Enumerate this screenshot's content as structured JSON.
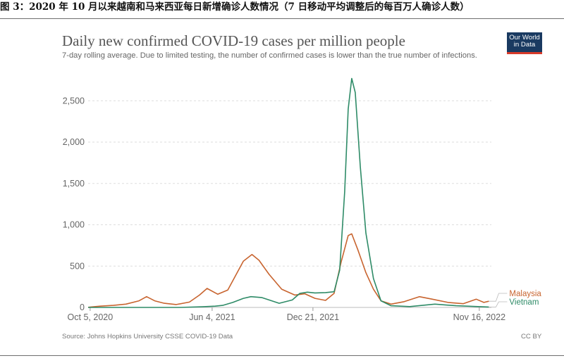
{
  "caption": "图 3：2020 年 10 月以来越南和马来西亚每日新增确诊人数情况（7 日移动平均调整后的每百万人确诊人数）",
  "logo": {
    "line1": "Our World",
    "line2": "in Data"
  },
  "source": "Source: Johns Hopkins University CSSE COVID-19 Data",
  "license": "CC BY",
  "colors": {
    "malaysia": "#c8642f",
    "vietnam": "#2e8b67",
    "grid": "#dddddd",
    "axis": "#666666"
  },
  "chart_data": {
    "type": "line",
    "title": "Daily new confirmed COVID-19 cases per million people",
    "subtitle": "7-day rolling average. Due to limited testing, the number of confirmed cases is lower than the true number of infections.",
    "xlabel": "",
    "ylabel": "",
    "x_range": [
      "2020-10-01",
      "2022-12-10"
    ],
    "ylim": [
      0,
      2800
    ],
    "y_ticks": [
      0,
      500,
      1000,
      1500,
      2000,
      2500
    ],
    "y_tick_labels": [
      "0",
      "500",
      "1,000",
      "1,500",
      "2,000",
      "2,500"
    ],
    "x_ticks": [
      "2020-10-05",
      "2021-06-04",
      "2021-12-21",
      "2022-11-16"
    ],
    "x_tick_labels": [
      "Oct 5, 2020",
      "Jun 4, 2021",
      "Dec 21, 2021",
      "Nov 16, 2022"
    ],
    "grid": true,
    "legend": "right",
    "series": [
      {
        "name": "Malaysia",
        "points": [
          [
            "2020-10-01",
            2
          ],
          [
            "2020-10-25",
            15
          ],
          [
            "2020-11-20",
            25
          ],
          [
            "2020-12-15",
            40
          ],
          [
            "2021-01-10",
            80
          ],
          [
            "2021-01-25",
            130
          ],
          [
            "2021-02-10",
            80
          ],
          [
            "2021-03-01",
            50
          ],
          [
            "2021-03-25",
            35
          ],
          [
            "2021-04-20",
            65
          ],
          [
            "2021-05-10",
            150
          ],
          [
            "2021-05-25",
            230
          ],
          [
            "2021-06-15",
            160
          ],
          [
            "2021-07-05",
            210
          ],
          [
            "2021-07-20",
            380
          ],
          [
            "2021-08-05",
            560
          ],
          [
            "2021-08-22",
            640
          ],
          [
            "2021-09-05",
            570
          ],
          [
            "2021-09-25",
            400
          ],
          [
            "2021-10-20",
            220
          ],
          [
            "2021-11-15",
            150
          ],
          [
            "2021-12-05",
            165
          ],
          [
            "2021-12-25",
            110
          ],
          [
            "2022-01-15",
            85
          ],
          [
            "2022-02-01",
            170
          ],
          [
            "2022-02-15",
            550
          ],
          [
            "2022-03-01",
            870
          ],
          [
            "2022-03-08",
            890
          ],
          [
            "2022-03-20",
            700
          ],
          [
            "2022-04-05",
            420
          ],
          [
            "2022-04-20",
            220
          ],
          [
            "2022-05-05",
            80
          ],
          [
            "2022-05-25",
            40
          ],
          [
            "2022-06-20",
            70
          ],
          [
            "2022-07-20",
            130
          ],
          [
            "2022-08-15",
            100
          ],
          [
            "2022-09-15",
            60
          ],
          [
            "2022-10-15",
            45
          ],
          [
            "2022-11-10",
            100
          ],
          [
            "2022-11-25",
            60
          ],
          [
            "2022-12-05",
            75
          ]
        ]
      },
      {
        "name": "Vietnam",
        "points": [
          [
            "2020-10-01",
            0
          ],
          [
            "2021-04-01",
            0
          ],
          [
            "2021-05-15",
            8
          ],
          [
            "2021-06-10",
            15
          ],
          [
            "2021-06-25",
            25
          ],
          [
            "2021-07-15",
            60
          ],
          [
            "2021-08-05",
            110
          ],
          [
            "2021-08-20",
            130
          ],
          [
            "2021-09-10",
            120
          ],
          [
            "2021-09-25",
            90
          ],
          [
            "2021-10-15",
            50
          ],
          [
            "2021-11-10",
            90
          ],
          [
            "2021-11-25",
            170
          ],
          [
            "2021-12-10",
            185
          ],
          [
            "2021-12-25",
            175
          ],
          [
            "2022-01-15",
            180
          ],
          [
            "2022-02-01",
            190
          ],
          [
            "2022-02-12",
            450
          ],
          [
            "2022-02-22",
            1400
          ],
          [
            "2022-03-01",
            2400
          ],
          [
            "2022-03-08",
            2770
          ],
          [
            "2022-03-15",
            2600
          ],
          [
            "2022-03-25",
            1700
          ],
          [
            "2022-04-05",
            900
          ],
          [
            "2022-04-20",
            350
          ],
          [
            "2022-05-05",
            80
          ],
          [
            "2022-05-25",
            20
          ],
          [
            "2022-07-01",
            10
          ],
          [
            "2022-08-20",
            40
          ],
          [
            "2022-10-01",
            20
          ],
          [
            "2022-12-05",
            5
          ]
        ]
      }
    ]
  }
}
